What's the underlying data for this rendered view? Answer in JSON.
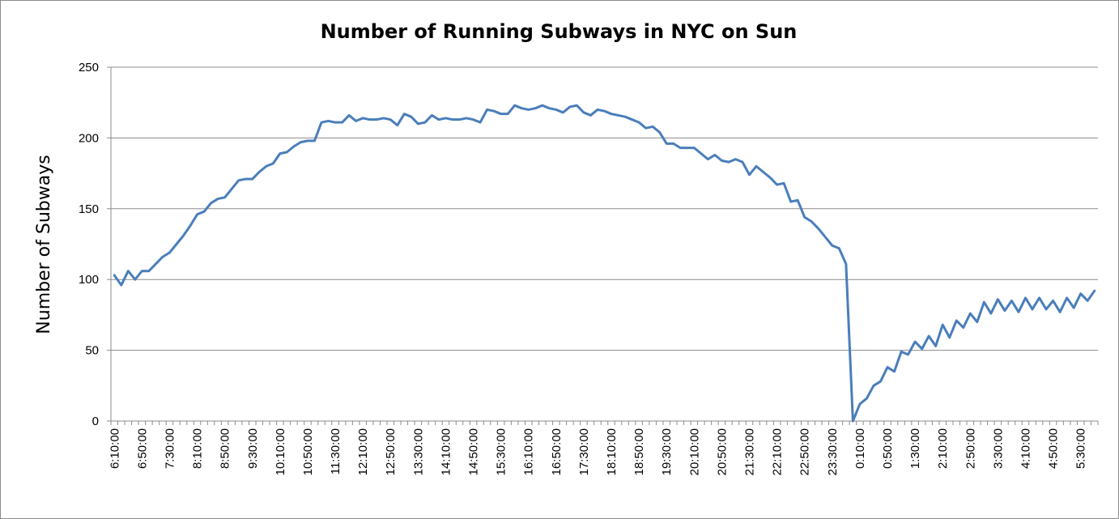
{
  "chart_data": {
    "type": "line",
    "title": "Number of Running Subways in NYC on Sun",
    "xlabel": "",
    "ylabel": "Number of Subways",
    "ylim": [
      0,
      250
    ],
    "yticks": [
      0,
      50,
      100,
      150,
      200,
      250
    ],
    "grid": true,
    "legend": "none",
    "line_color": "#4a7ebb",
    "x_tick_labels": [
      "6:10:00",
      "6:50:00",
      "7:30:00",
      "8:10:00",
      "8:50:00",
      "9:30:00",
      "10:10:00",
      "10:50:00",
      "11:30:00",
      "12:10:00",
      "12:50:00",
      "13:30:00",
      "14:10:00",
      "14:50:00",
      "15:30:00",
      "16:10:00",
      "16:50:00",
      "17:30:00",
      "18:10:00",
      "18:50:00",
      "19:30:00",
      "20:10:00",
      "20:50:00",
      "21:30:00",
      "22:10:00",
      "22:50:00",
      "23:30:00",
      "0:10:00",
      "0:50:00",
      "1:30:00",
      "2:10:00",
      "2:50:00",
      "3:30:00",
      "4:10:00",
      "4:50:00",
      "5:30:00"
    ],
    "series": [
      {
        "values": [
          103,
          96,
          106,
          100,
          106,
          106,
          111,
          116,
          119,
          125,
          131,
          138,
          146,
          148,
          154,
          157,
          158,
          164,
          170,
          171,
          171,
          176,
          180,
          182,
          189,
          190,
          194,
          197,
          198,
          198,
          211,
          212,
          211,
          211,
          216,
          212,
          214,
          213,
          213,
          214,
          213,
          209,
          217,
          215,
          210,
          211,
          216,
          213,
          214,
          213,
          213,
          214,
          213,
          211,
          220,
          219,
          217,
          217,
          223,
          221,
          220,
          221,
          223,
          221,
          220,
          218,
          222,
          223,
          218,
          216,
          220,
          219,
          217,
          216,
          215,
          213,
          211,
          207,
          208,
          204,
          196,
          196,
          193,
          193,
          193,
          189,
          185,
          188,
          184,
          183,
          185,
          183,
          174,
          180,
          176,
          172,
          167,
          168,
          155,
          156,
          144,
          141,
          136,
          130,
          124,
          122,
          111,
          0,
          12,
          16,
          25,
          28,
          38,
          35,
          49,
          47,
          56,
          51,
          60,
          53,
          68,
          59,
          71,
          66,
          76,
          70,
          84,
          76,
          86,
          78,
          85,
          77,
          87,
          79,
          87,
          79,
          85,
          77,
          87,
          80,
          90,
          85,
          92
        ]
      }
    ]
  }
}
